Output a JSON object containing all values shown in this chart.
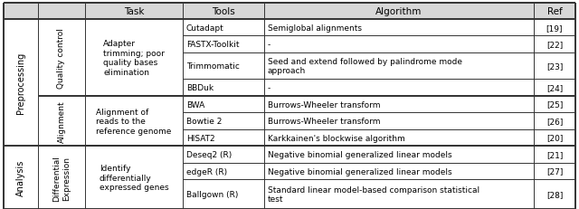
{
  "figsize": [
    6.4,
    2.32
  ],
  "dpi": 100,
  "bg_color": "#ffffff",
  "table_bg": "#ffffff",
  "header_bg": "#d8d8d8",
  "border_color": "#333333",
  "text_color": "#000000",
  "font_size": 6.5,
  "header_font_size": 7.5,
  "rotated_font_size": 6.5,
  "rows": [
    {
      "tool": "Cutadapt",
      "algorithm": "Semiglobal alignments",
      "ref": "[19]"
    },
    {
      "tool": "FASTX-Toolkit",
      "algorithm": "-",
      "ref": "[22]"
    },
    {
      "tool": "Trimmomatic",
      "algorithm": "Seed and extend followed by palindrome mode\napproach",
      "ref": "[23]"
    },
    {
      "tool": "BBDuk",
      "algorithm": "-",
      "ref": "[24]"
    },
    {
      "tool": "BWA",
      "algorithm": "Burrows-Wheeler transform",
      "ref": "[25]"
    },
    {
      "tool": "Bowtie 2",
      "algorithm": "Burrows-Wheeler transform",
      "ref": "[26]"
    },
    {
      "tool": "HISAT2",
      "algorithm": "Karkkainen's blockwise algorithm",
      "ref": "[20]"
    },
    {
      "tool": "Deseq2 (R)",
      "algorithm": "Negative binomial generalized linear models",
      "ref": "[21]"
    },
    {
      "tool": "edgeR (R)",
      "algorithm": "Negative binomial generalized linear models",
      "ref": "[27]"
    },
    {
      "tool": "Ballgown (R)",
      "algorithm": "Standard linear model-based comparison statistical\ntest",
      "ref": "[28]"
    }
  ],
  "group1_label": "Preprocessing",
  "group2_label": "Analysis",
  "subgroup1_label": "Quality control",
  "subgroup2_label": "Alignment",
  "subgroup3_label": "Differential\nExpression",
  "task1_label": "Adapter\ntrimming; poor\nquality bases\nelimination",
  "task2_label": "Alignment of\nreads to the\nreference genome",
  "task3_label": "Identify\ndifferentially\nexpressed genes",
  "header_labels": [
    "",
    "",
    "Task",
    "Tools",
    "Algorithm",
    "Ref"
  ]
}
